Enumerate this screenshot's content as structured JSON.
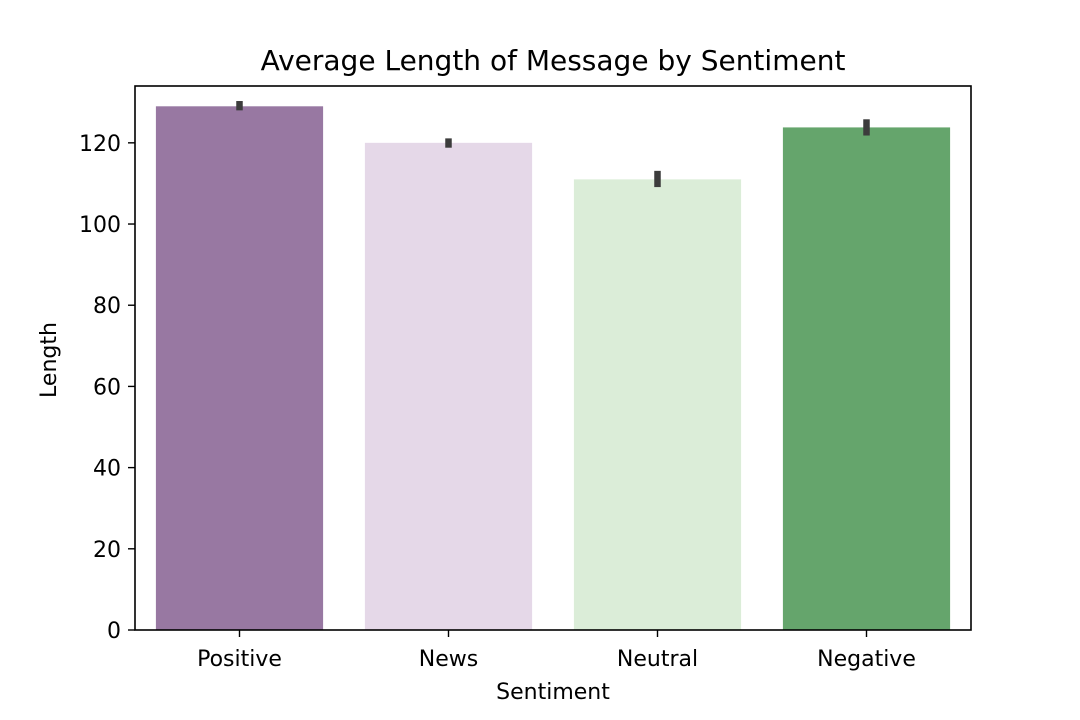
{
  "chart_data": {
    "type": "bar",
    "title": "Average Length of Message by Sentiment",
    "xlabel": "Sentiment",
    "ylabel": "Length",
    "categories": [
      "Positive",
      "News",
      "Neutral",
      "Negative"
    ],
    "values": [
      129,
      120,
      111,
      123.8
    ],
    "error_bars": [
      [
        128,
        130.3
      ],
      [
        118.8,
        121.1
      ],
      [
        109.1,
        113.1
      ],
      [
        121.8,
        125.8
      ]
    ],
    "colors": [
      "#9878a2",
      "#e5d8e8",
      "#dbedd8",
      "#65a56c"
    ],
    "errorbar_color": "#3c3c3c",
    "ylim": [
      0,
      134
    ],
    "yticks": [
      0,
      20,
      40,
      60,
      80,
      100,
      120
    ],
    "grid": false,
    "legend": false
  }
}
